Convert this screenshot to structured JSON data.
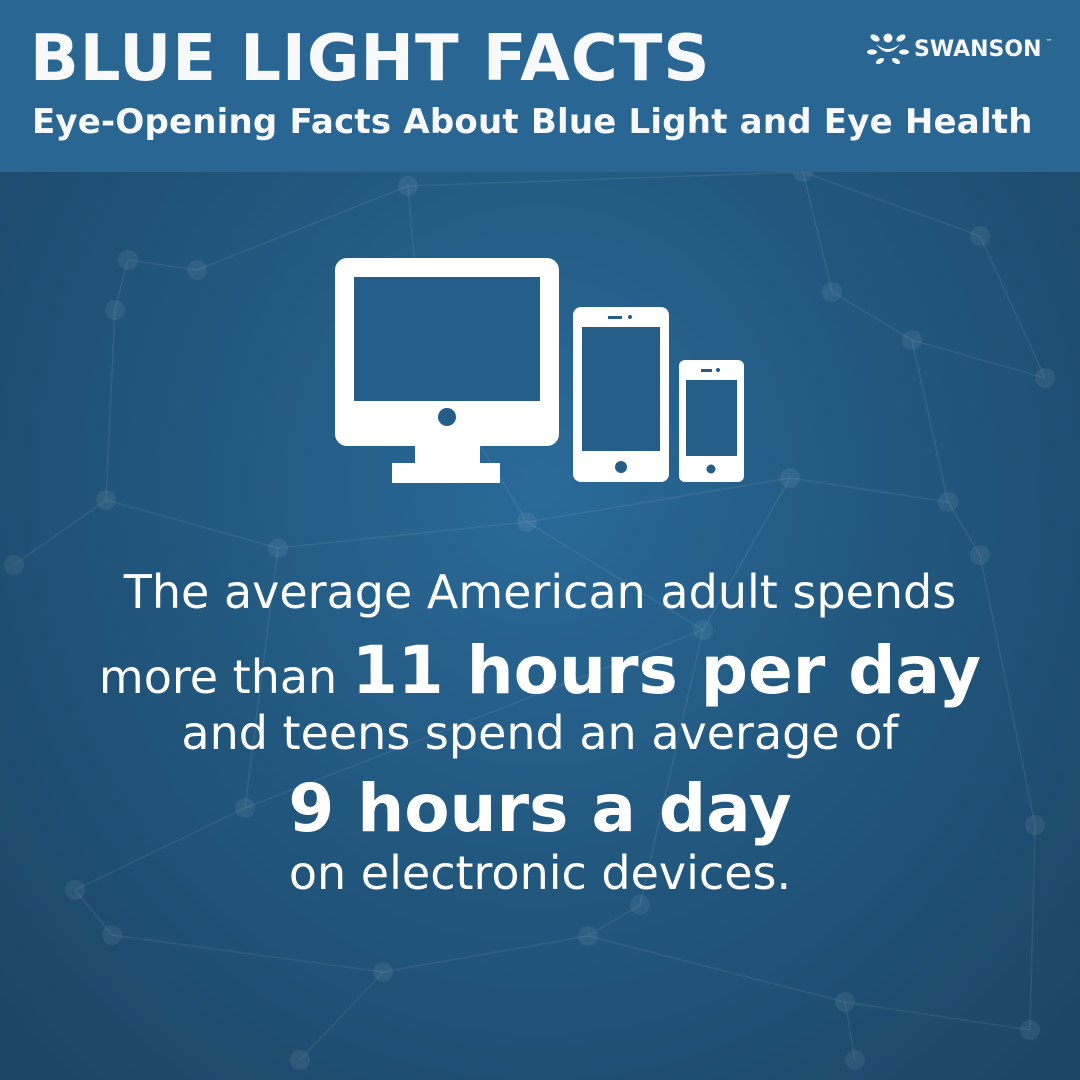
{
  "header": {
    "title": "BLUE LIGHT FACTS",
    "subtitle": "Eye-Opening Facts About Blue Light and Eye Health",
    "logo": {
      "text": "SWANSON",
      "tm": "™"
    }
  },
  "icons": [
    "desktop-monitor-icon",
    "tablet-icon",
    "smartphone-icon"
  ],
  "body": {
    "line1": "The average American adult spends",
    "line2_prefix": "more than ",
    "line2_emphasis": "11 hours per day",
    "line3": "and teens spend an average of",
    "line4_emphasis": "9 hours a day",
    "line5": "on electronic devices."
  },
  "colors": {
    "header": "#2a6794",
    "background": "#22587f",
    "text": "#ffffff"
  }
}
